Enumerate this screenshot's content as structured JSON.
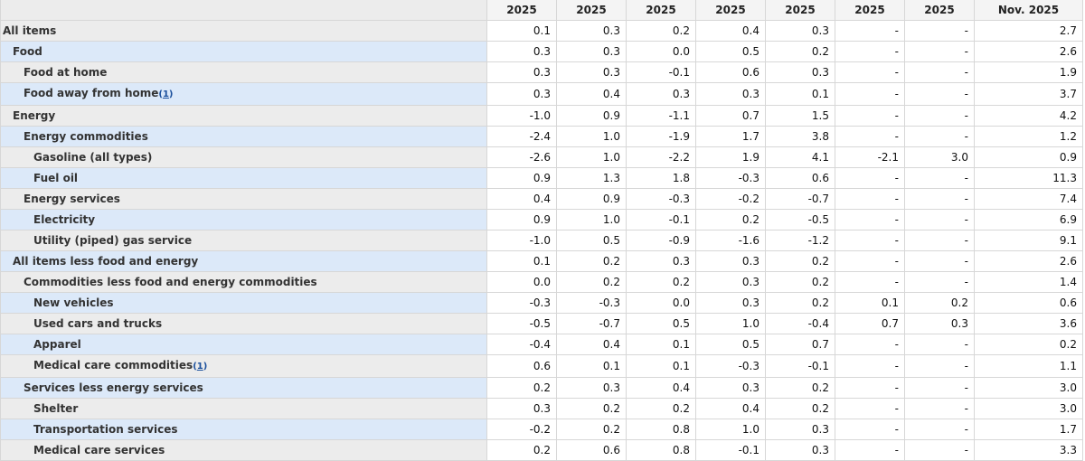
{
  "header": {
    "columns": [
      "2025",
      "2025",
      "2025",
      "2025",
      "2025",
      "2025",
      "2025",
      "Nov. 2025"
    ]
  },
  "rows": [
    {
      "label": "All items",
      "indent": 0,
      "footnote": "",
      "values": [
        "0.1",
        "0.3",
        "0.2",
        "0.4",
        "0.3",
        "-",
        "-",
        "2.7"
      ]
    },
    {
      "label": "Food",
      "indent": 1,
      "footnote": "",
      "values": [
        "0.3",
        "0.3",
        "0.0",
        "0.5",
        "0.2",
        "-",
        "-",
        "2.6"
      ]
    },
    {
      "label": "Food at home",
      "indent": 2,
      "footnote": "",
      "values": [
        "0.3",
        "0.3",
        "-0.1",
        "0.6",
        "0.3",
        "-",
        "-",
        "1.9"
      ]
    },
    {
      "label": "Food away from home",
      "indent": 2,
      "footnote": "1",
      "values": [
        "0.3",
        "0.4",
        "0.3",
        "0.3",
        "0.1",
        "-",
        "-",
        "3.7"
      ]
    },
    {
      "label": "Energy",
      "indent": 1,
      "footnote": "",
      "values": [
        "-1.0",
        "0.9",
        "-1.1",
        "0.7",
        "1.5",
        "-",
        "-",
        "4.2"
      ]
    },
    {
      "label": "Energy commodities",
      "indent": 2,
      "footnote": "",
      "values": [
        "-2.4",
        "1.0",
        "-1.9",
        "1.7",
        "3.8",
        "-",
        "-",
        "1.2"
      ]
    },
    {
      "label": "Gasoline (all types)",
      "indent": 3,
      "footnote": "",
      "values": [
        "-2.6",
        "1.0",
        "-2.2",
        "1.9",
        "4.1",
        "-2.1",
        "3.0",
        "0.9"
      ]
    },
    {
      "label": "Fuel oil",
      "indent": 3,
      "footnote": "",
      "values": [
        "0.9",
        "1.3",
        "1.8",
        "-0.3",
        "0.6",
        "-",
        "-",
        "11.3"
      ]
    },
    {
      "label": "Energy services",
      "indent": 2,
      "footnote": "",
      "values": [
        "0.4",
        "0.9",
        "-0.3",
        "-0.2",
        "-0.7",
        "-",
        "-",
        "7.4"
      ]
    },
    {
      "label": "Electricity",
      "indent": 3,
      "footnote": "",
      "values": [
        "0.9",
        "1.0",
        "-0.1",
        "0.2",
        "-0.5",
        "-",
        "-",
        "6.9"
      ]
    },
    {
      "label": "Utility (piped) gas service",
      "indent": 3,
      "footnote": "",
      "values": [
        "-1.0",
        "0.5",
        "-0.9",
        "-1.6",
        "-1.2",
        "-",
        "-",
        "9.1"
      ]
    },
    {
      "label": "All items less food and energy",
      "indent": 1,
      "footnote": "",
      "values": [
        "0.1",
        "0.2",
        "0.3",
        "0.3",
        "0.2",
        "-",
        "-",
        "2.6"
      ]
    },
    {
      "label": "Commodities less food and energy commodities",
      "indent": 2,
      "footnote": "",
      "values": [
        "0.0",
        "0.2",
        "0.2",
        "0.3",
        "0.2",
        "-",
        "-",
        "1.4"
      ]
    },
    {
      "label": "New vehicles",
      "indent": 3,
      "footnote": "",
      "values": [
        "-0.3",
        "-0.3",
        "0.0",
        "0.3",
        "0.2",
        "0.1",
        "0.2",
        "0.6"
      ]
    },
    {
      "label": "Used cars and trucks",
      "indent": 3,
      "footnote": "",
      "values": [
        "-0.5",
        "-0.7",
        "0.5",
        "1.0",
        "-0.4",
        "0.7",
        "0.3",
        "3.6"
      ]
    },
    {
      "label": "Apparel",
      "indent": 3,
      "footnote": "",
      "values": [
        "-0.4",
        "0.4",
        "0.1",
        "0.5",
        "0.7",
        "-",
        "-",
        "0.2"
      ]
    },
    {
      "label": "Medical care commodities",
      "indent": 3,
      "footnote": "1",
      "values": [
        "0.6",
        "0.1",
        "0.1",
        "-0.3",
        "-0.1",
        "-",
        "-",
        "1.1"
      ]
    },
    {
      "label": "Services less energy services",
      "indent": 2,
      "footnote": "",
      "values": [
        "0.2",
        "0.3",
        "0.4",
        "0.3",
        "0.2",
        "-",
        "-",
        "3.0"
      ]
    },
    {
      "label": "Shelter",
      "indent": 3,
      "footnote": "",
      "values": [
        "0.3",
        "0.2",
        "0.2",
        "0.4",
        "0.2",
        "-",
        "-",
        "3.0"
      ]
    },
    {
      "label": "Transportation services",
      "indent": 3,
      "footnote": "",
      "values": [
        "-0.2",
        "0.2",
        "0.8",
        "1.0",
        "0.3",
        "-",
        "-",
        "1.7"
      ]
    },
    {
      "label": "Medical care services",
      "indent": 3,
      "footnote": "",
      "values": [
        "0.2",
        "0.6",
        "0.8",
        "-0.1",
        "0.3",
        "-",
        "-",
        "3.3"
      ]
    }
  ]
}
